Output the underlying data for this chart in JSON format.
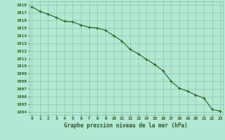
{
  "hours": [
    0,
    1,
    2,
    3,
    4,
    5,
    6,
    7,
    8,
    9,
    10,
    11,
    12,
    13,
    14,
    15,
    16,
    17,
    18,
    19,
    20,
    21,
    22,
    23
  ],
  "pressure": [
    1017.8,
    1017.2,
    1016.8,
    1016.4,
    1015.9,
    1015.8,
    1015.4,
    1015.1,
    1015.0,
    1014.7,
    1014.0,
    1013.3,
    1012.2,
    1011.6,
    1010.9,
    1010.2,
    1009.4,
    1008.0,
    1007.1,
    1006.7,
    1006.2,
    1005.8,
    1004.3,
    1004.1
  ],
  "line_color": "#2d5a27",
  "marker": "+",
  "bg_color": "#b3e8d4",
  "grid_color": "#7abf9e",
  "ylabel_ticks": [
    1004,
    1005,
    1006,
    1007,
    1008,
    1009,
    1010,
    1011,
    1012,
    1013,
    1014,
    1015,
    1016,
    1017,
    1018
  ],
  "ylim": [
    1003.6,
    1018.5
  ],
  "xlim": [
    -0.3,
    23.3
  ],
  "xlabel": "Graphe pression niveau de la mer (hPa)",
  "tick_color": "#2d5a27",
  "font_color": "#2d5a27"
}
